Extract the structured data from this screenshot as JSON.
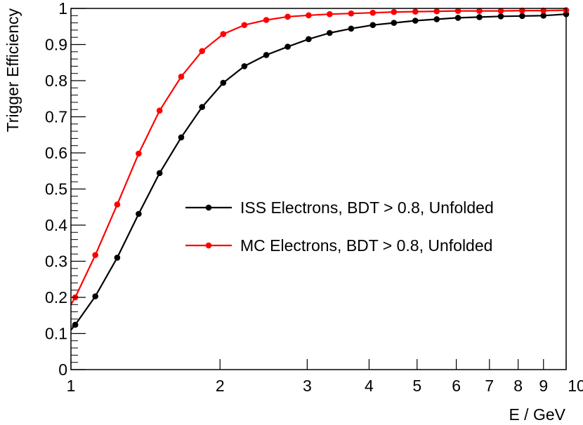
{
  "chart_data": {
    "type": "line",
    "xlabel": "E / GeV",
    "ylabel": "Trigger Efficiency",
    "xscale": "log",
    "xlim": [
      1,
      10
    ],
    "ylim": [
      0,
      1
    ],
    "xticks": [
      {
        "value": 1,
        "label": "1"
      },
      {
        "value": 2,
        "label": "2"
      },
      {
        "value": 3,
        "label": "3"
      },
      {
        "value": 4,
        "label": "4"
      },
      {
        "value": 5,
        "label": "5"
      },
      {
        "value": 6,
        "label": "6"
      },
      {
        "value": 7,
        "label": "7"
      },
      {
        "value": 8,
        "label": "8"
      },
      {
        "value": 9,
        "label": "9"
      },
      {
        "value": 10,
        "label": "10"
      }
    ],
    "yticks": [
      {
        "value": 0,
        "label": "0"
      },
      {
        "value": 0.1,
        "label": "0.1"
      },
      {
        "value": 0.2,
        "label": "0.2"
      },
      {
        "value": 0.3,
        "label": "0.3"
      },
      {
        "value": 0.4,
        "label": "0.4"
      },
      {
        "value": 0.5,
        "label": "0.5"
      },
      {
        "value": 0.6,
        "label": "0.6"
      },
      {
        "value": 0.7,
        "label": "0.7"
      },
      {
        "value": 0.8,
        "label": "0.8"
      },
      {
        "value": 0.9,
        "label": "0.9"
      },
      {
        "value": 1,
        "label": "1"
      }
    ],
    "grid": false,
    "legend_position": "center-right",
    "x": [
      1.02,
      1.12,
      1.24,
      1.37,
      1.51,
      1.67,
      1.84,
      2.03,
      2.24,
      2.48,
      2.74,
      3.02,
      3.33,
      3.68,
      4.07,
      4.49,
      4.96,
      5.48,
      6.05,
      6.68,
      7.38,
      8.15,
      9.0,
      10.0
    ],
    "series": [
      {
        "name": "ISS Electrons, BDT > 0.8, Unfolded",
        "color": "#000000",
        "line_start": {
          "x": 1.0,
          "y": 0.11
        },
        "values": [
          0.124,
          0.203,
          0.31,
          0.431,
          0.544,
          0.643,
          0.727,
          0.794,
          0.84,
          0.871,
          0.894,
          0.915,
          0.932,
          0.944,
          0.954,
          0.96,
          0.966,
          0.97,
          0.974,
          0.976,
          0.978,
          0.979,
          0.98,
          0.984
        ]
      },
      {
        "name": "MC Electrons, BDT > 0.8, Unfolded",
        "color": "#ff0000",
        "line_start": {
          "x": 1.0,
          "y": 0.18
        },
        "values": [
          0.2,
          0.317,
          0.457,
          0.598,
          0.717,
          0.811,
          0.882,
          0.929,
          0.954,
          0.968,
          0.977,
          0.981,
          0.984,
          0.986,
          0.988,
          0.99,
          0.991,
          0.992,
          0.993,
          0.993,
          0.993,
          0.994,
          0.994,
          0.995
        ]
      }
    ]
  }
}
